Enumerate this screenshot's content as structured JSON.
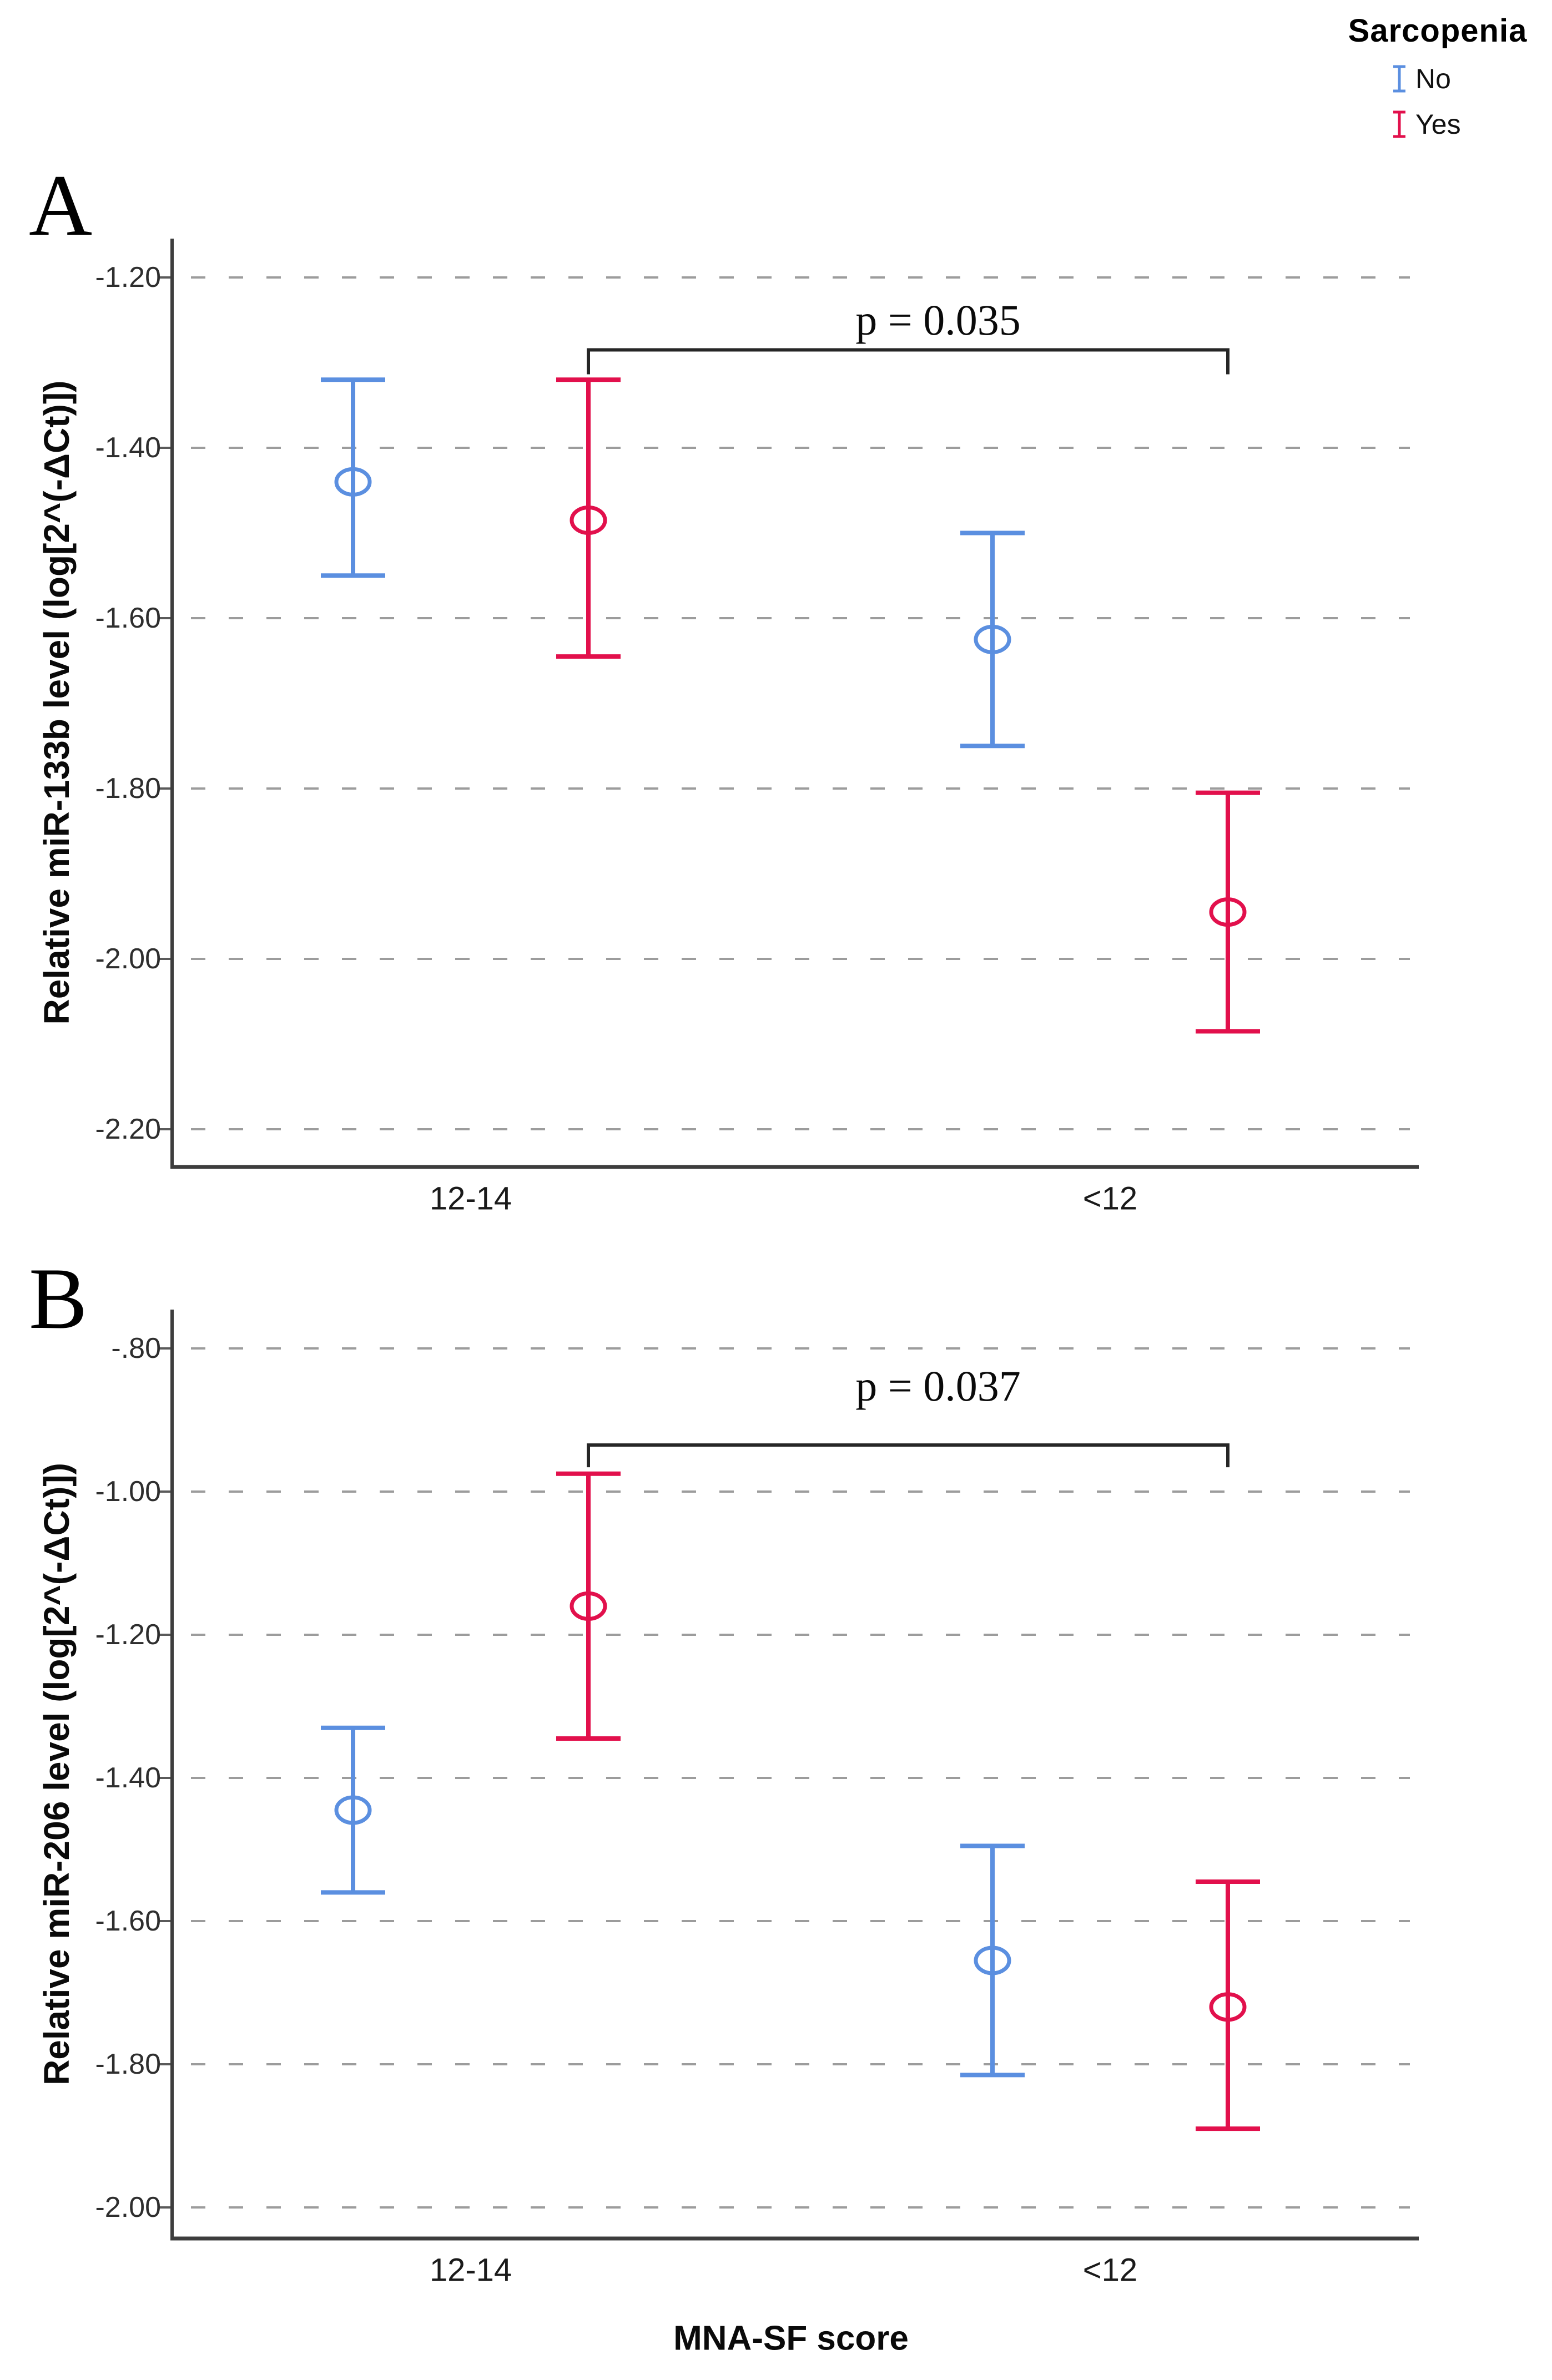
{
  "legend": {
    "title": "Sarcopenia",
    "items": [
      {
        "label": "No",
        "color": "#5B8FE0",
        "icon": "errorbar-icon"
      },
      {
        "label": "Yes",
        "color": "#E2104C",
        "icon": "errorbar-icon"
      }
    ]
  },
  "xlabel": "MNA-SF score",
  "colors": {
    "no_series": "#5B8FE0",
    "yes_series": "#E2104C",
    "gridline": "#9c9c9c",
    "axis": "#3d3d3d",
    "bracket": "#262626"
  },
  "chart_data": [
    {
      "type": "errorbar",
      "panel": "A",
      "ylabel": "Relative miR-133b level (log[2^(-ΔCt)])",
      "xlabel": "",
      "categories": [
        "12-14",
        "<12"
      ],
      "ytick_labels": [
        "-1.20",
        "-1.40",
        "-1.60",
        "-1.80",
        "-2.00",
        "-2.20"
      ],
      "ytick_values": [
        -1.2,
        -1.4,
        -1.6,
        -1.8,
        -2.0,
        -2.2
      ],
      "ylim": [
        -2.24,
        -1.15
      ],
      "grid": "dashed-horizontal",
      "marker": "open-circle",
      "legend_position": "top-right-outside",
      "series": [
        {
          "name": "No",
          "color": "#5B8FE0",
          "points": [
            {
              "x": "12-14",
              "mean": -1.44,
              "lo": -1.55,
              "hi": -1.32
            },
            {
              "x": "<12",
              "mean": -1.625,
              "lo": -1.75,
              "hi": -1.5
            }
          ]
        },
        {
          "name": "Yes",
          "color": "#E2104C",
          "points": [
            {
              "x": "12-14",
              "mean": -1.485,
              "lo": -1.645,
              "hi": -1.32
            },
            {
              "x": "<12",
              "mean": -1.945,
              "lo": -2.085,
              "hi": -1.805
            }
          ]
        }
      ],
      "significance": {
        "label": "p = 0.035",
        "from_series": "Yes",
        "from_x": "12-14",
        "to_series": "Yes",
        "to_x": "<12",
        "bar_y": -1.285
      }
    },
    {
      "type": "errorbar",
      "panel": "B",
      "ylabel": "Relative miR-206 level (log[2^(-ΔCt)])",
      "xlabel": "MNA-SF score",
      "categories": [
        "12-14",
        "<12"
      ],
      "ytick_labels": [
        "-.80",
        "-1.00",
        "-1.20",
        "-1.40",
        "-1.60",
        "-1.80",
        "-2.00"
      ],
      "ytick_values": [
        -0.8,
        -1.0,
        -1.2,
        -1.4,
        -1.6,
        -1.8,
        -2.0
      ],
      "ylim": [
        -2.04,
        -0.75
      ],
      "grid": "dashed-horizontal",
      "marker": "open-circle",
      "legend_position": "top-right-outside",
      "series": [
        {
          "name": "No",
          "color": "#5B8FE0",
          "points": [
            {
              "x": "12-14",
              "mean": -1.445,
              "lo": -1.56,
              "hi": -1.33
            },
            {
              "x": "<12",
              "mean": -1.655,
              "lo": -1.815,
              "hi": -1.495
            }
          ]
        },
        {
          "name": "Yes",
          "color": "#E2104C",
          "points": [
            {
              "x": "12-14",
              "mean": -1.16,
              "lo": -1.345,
              "hi": -0.975
            },
            {
              "x": "<12",
              "mean": -1.72,
              "lo": -1.89,
              "hi": -1.545
            }
          ]
        }
      ],
      "significance": {
        "label": "p = 0.037",
        "from_series": "Yes",
        "from_x": "12-14",
        "to_series": "Yes",
        "to_x": "<12",
        "bar_y": -0.935
      }
    }
  ]
}
